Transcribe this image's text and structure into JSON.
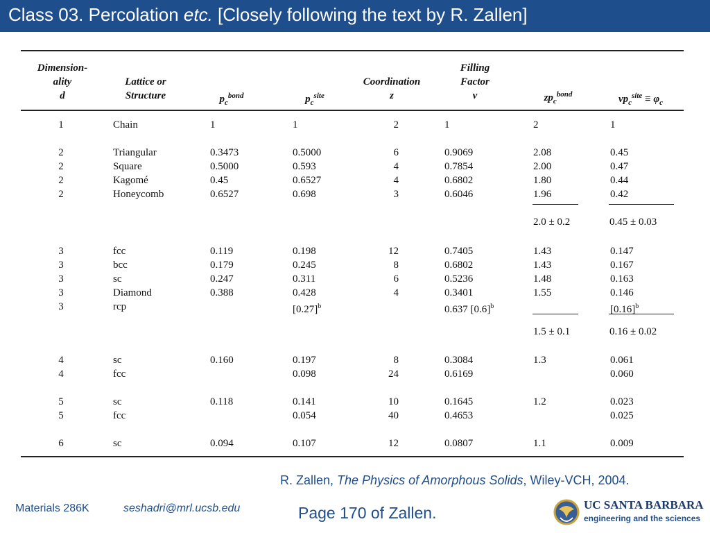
{
  "slide": {
    "title_prefix": "Class 03. Percolation ",
    "title_italic": "etc.",
    "title_suffix": " [Closely following the text by R. Zallen]"
  },
  "table": {
    "headers": {
      "d_line1": "Dimension-",
      "d_line2": "ality",
      "d_line3": "d",
      "lattice_line1": "Lattice or",
      "lattice_line2": "Structure",
      "pbond_base": "p",
      "pbond_sub": "c",
      "pbond_sup": "bond",
      "psite_base": "p",
      "psite_sub": "c",
      "psite_sup": "site",
      "coord_line1": "Coordination",
      "coord_line2": "z",
      "fill_line1": "Filling",
      "fill_line2": "Factor",
      "fill_line3": "v",
      "zp_base": "zp",
      "zp_sub": "c",
      "zp_sup": "bond",
      "vp_base": "vp",
      "vp_sub": "c",
      "vp_sup": "site",
      "vp_tail": " ≡ φ",
      "vp_tail_sub": "c"
    },
    "rows": [
      {
        "d": "1",
        "lattice": "Chain",
        "pbond": "1",
        "psite": "1",
        "psite_sup": "",
        "z": "2",
        "v": "1",
        "v_sup": "",
        "zp": "2",
        "vp": "1",
        "vp_sup": ""
      },
      {
        "d": "2",
        "lattice": "Triangular",
        "pbond": "0.3473",
        "psite": "0.5000",
        "psite_sup": "",
        "z": "6",
        "v": "0.9069",
        "v_sup": "",
        "zp": "2.08",
        "vp": "0.45",
        "vp_sup": ""
      },
      {
        "d": "2",
        "lattice": "Square",
        "pbond": "0.5000",
        "psite": "0.593",
        "psite_sup": "",
        "z": "4",
        "v": "0.7854",
        "v_sup": "",
        "zp": "2.00",
        "vp": "0.47",
        "vp_sup": ""
      },
      {
        "d": "2",
        "lattice": "Kagomé",
        "pbond": "0.45",
        "psite": "0.6527",
        "psite_sup": "",
        "z": "4",
        "v": "0.6802",
        "v_sup": "",
        "zp": "1.80",
        "vp": "0.44",
        "vp_sup": ""
      },
      {
        "d": "2",
        "lattice": "Honeycomb",
        "pbond": "0.6527",
        "psite": "0.698",
        "psite_sup": "",
        "z": "3",
        "v": "0.6046",
        "v_sup": "",
        "zp": "1.96",
        "vp": "0.42",
        "vp_sup": ""
      },
      {
        "d": "3",
        "lattice": "fcc",
        "pbond": "0.119",
        "psite": "0.198",
        "psite_sup": "",
        "z": "12",
        "v": "0.7405",
        "v_sup": "",
        "zp": "1.43",
        "vp": "0.147",
        "vp_sup": ""
      },
      {
        "d": "3",
        "lattice": "bcc",
        "pbond": "0.179",
        "psite": "0.245",
        "psite_sup": "",
        "z": "8",
        "v": "0.6802",
        "v_sup": "",
        "zp": "1.43",
        "vp": "0.167",
        "vp_sup": ""
      },
      {
        "d": "3",
        "lattice": "sc",
        "pbond": "0.247",
        "psite": "0.311",
        "psite_sup": "",
        "z": "6",
        "v": "0.5236",
        "v_sup": "",
        "zp": "1.48",
        "vp": "0.163",
        "vp_sup": ""
      },
      {
        "d": "3",
        "lattice": "Diamond",
        "pbond": "0.388",
        "psite": "0.428",
        "psite_sup": "",
        "z": "4",
        "v": "0.3401",
        "v_sup": "",
        "zp": "1.55",
        "vp": "0.146",
        "vp_sup": ""
      },
      {
        "d": "3",
        "lattice": "rcp",
        "pbond": "",
        "psite": "[0.27]",
        "psite_sup": "b",
        "z": "",
        "v": "0.637 [0.6]",
        "v_sup": "b",
        "zp": "",
        "vp": "[0.16]",
        "vp_sup": "b"
      },
      {
        "d": "4",
        "lattice": "sc",
        "pbond": "0.160",
        "psite": "0.197",
        "psite_sup": "",
        "z": "8",
        "v": "0.3084",
        "v_sup": "",
        "zp": "1.3",
        "vp": "0.061",
        "vp_sup": ""
      },
      {
        "d": "4",
        "lattice": "fcc",
        "pbond": "",
        "psite": "0.098",
        "psite_sup": "",
        "z": "24",
        "v": "0.6169",
        "v_sup": "",
        "zp": "",
        "vp": "0.060",
        "vp_sup": ""
      },
      {
        "d": "5",
        "lattice": "sc",
        "pbond": "0.118",
        "psite": "0.141",
        "psite_sup": "",
        "z": "10",
        "v": "0.1645",
        "v_sup": "",
        "zp": "1.2",
        "vp": "0.023",
        "vp_sup": ""
      },
      {
        "d": "5",
        "lattice": "fcc",
        "pbond": "",
        "psite": "0.054",
        "psite_sup": "",
        "z": "40",
        "v": "0.4653",
        "v_sup": "",
        "zp": "",
        "vp": "0.025",
        "vp_sup": ""
      },
      {
        "d": "6",
        "lattice": "sc",
        "pbond": "0.094",
        "psite": "0.107",
        "psite_sup": "",
        "z": "12",
        "v": "0.0807",
        "v_sup": "",
        "zp": "1.1",
        "vp": "0.009",
        "vp_sup": ""
      }
    ],
    "summaries": [
      {
        "zp": "2.0 ± 0.2",
        "vp": "0.45 ± 0.03"
      },
      {
        "zp": "1.5 ± 0.1",
        "vp": "0.16 ± 0.02"
      }
    ]
  },
  "citation": {
    "prefix": "R. Zallen, ",
    "italic": "The Physics of Amorphous Solids",
    "suffix": ", Wiley-VCH, 2004."
  },
  "footer": {
    "course": "Materials 286K",
    "email": "seshadri@mrl.ucsb.edu",
    "page": "Page 170 of Zallen."
  },
  "logo": {
    "line1": "UC SANTA BARBARA",
    "line2": "engineering and the sciences",
    "icon": "ucsb-seal-icon"
  }
}
